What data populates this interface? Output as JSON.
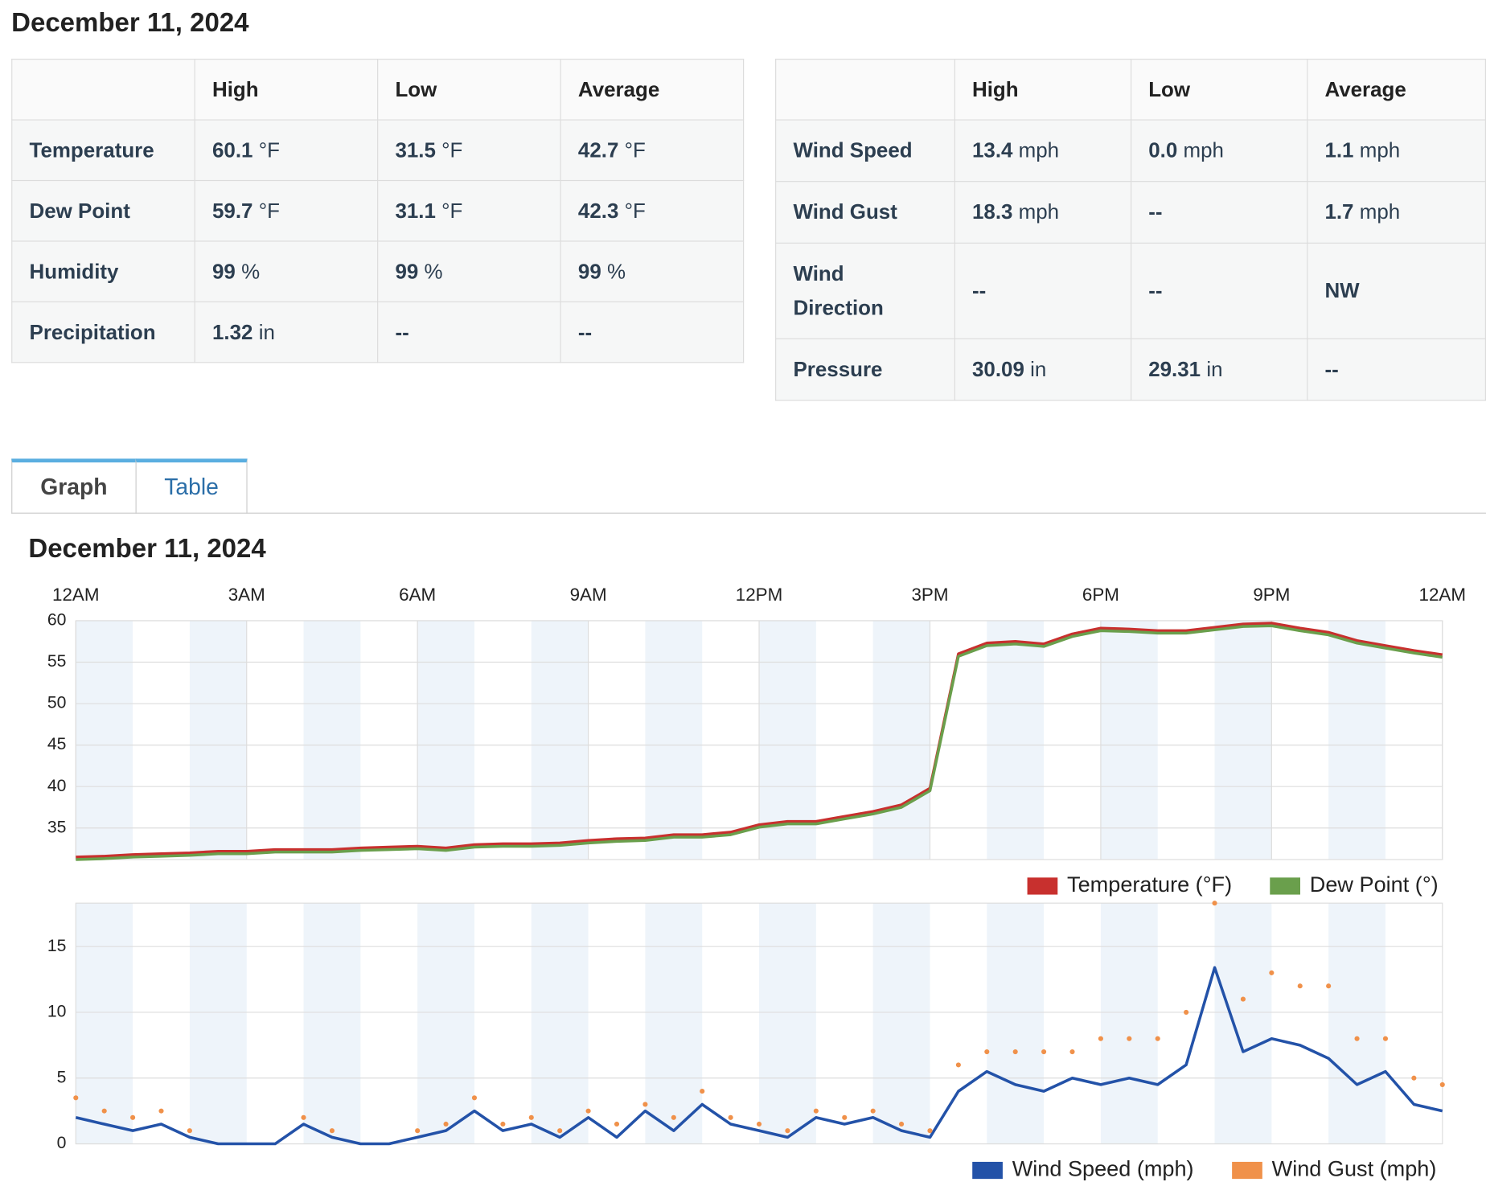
{
  "title": "December 11, 2024",
  "tables": [
    {
      "header": [
        "",
        "High",
        "Low",
        "Average"
      ],
      "rows": [
        {
          "label": "Temperature",
          "cells": [
            {
              "value": "60.1",
              "unit": "°F"
            },
            {
              "value": "31.5",
              "unit": "°F"
            },
            {
              "value": "42.7",
              "unit": "°F"
            }
          ]
        },
        {
          "label": "Dew Point",
          "cells": [
            {
              "value": "59.7",
              "unit": "°F"
            },
            {
              "value": "31.1",
              "unit": "°F"
            },
            {
              "value": "42.3",
              "unit": "°F"
            }
          ]
        },
        {
          "label": "Humidity",
          "cells": [
            {
              "value": "99",
              "unit": "%"
            },
            {
              "value": "99",
              "unit": "%"
            },
            {
              "value": "99",
              "unit": "%"
            }
          ]
        },
        {
          "label": "Precipitation",
          "cells": [
            {
              "value": "1.32",
              "unit": "in"
            },
            {
              "value": "--"
            },
            {
              "value": "--"
            }
          ]
        }
      ]
    },
    {
      "header": [
        "",
        "High",
        "Low",
        "Average"
      ],
      "rows": [
        {
          "label": "Wind Speed",
          "cells": [
            {
              "value": "13.4",
              "unit": "mph"
            },
            {
              "value": "0.0",
              "unit": "mph"
            },
            {
              "value": "1.1",
              "unit": "mph"
            }
          ]
        },
        {
          "label": "Wind Gust",
          "cells": [
            {
              "value": "18.3",
              "unit": "mph"
            },
            {
              "value": "--"
            },
            {
              "value": "1.7",
              "unit": "mph"
            }
          ]
        },
        {
          "label": "Wind Direction",
          "cells": [
            {
              "value": "--"
            },
            {
              "value": "--"
            },
            {
              "value": "NW"
            }
          ]
        },
        {
          "label": "Pressure",
          "cells": [
            {
              "value": "30.09",
              "unit": "in"
            },
            {
              "value": "29.31",
              "unit": "in"
            },
            {
              "value": "--"
            }
          ]
        }
      ]
    }
  ],
  "tabs": [
    "Graph",
    "Table"
  ],
  "chart_data": [
    {
      "type": "line",
      "title": "December 11, 2024",
      "x": [
        0,
        0.5,
        1,
        1.5,
        2,
        2.5,
        3,
        3.5,
        4,
        4.5,
        5,
        5.5,
        6,
        6.5,
        7,
        7.5,
        8,
        8.5,
        9,
        9.5,
        10,
        10.5,
        11,
        11.5,
        12,
        12.5,
        13,
        13.5,
        14,
        14.5,
        15,
        15.5,
        16,
        16.5,
        17,
        17.5,
        18,
        18.5,
        19,
        19.5,
        20,
        20.5,
        21,
        21.5,
        22,
        22.5,
        23,
        23.5,
        24
      ],
      "xlim": [
        0,
        24
      ],
      "xticks": [
        {
          "value": 0,
          "label": "12AM"
        },
        {
          "value": 3,
          "label": "3AM"
        },
        {
          "value": 6,
          "label": "6AM"
        },
        {
          "value": 9,
          "label": "9AM"
        },
        {
          "value": 12,
          "label": "12PM"
        },
        {
          "value": 15,
          "label": "3PM"
        },
        {
          "value": 18,
          "label": "6PM"
        },
        {
          "value": 21,
          "label": "9PM"
        },
        {
          "value": 24,
          "label": "12AM"
        }
      ],
      "ylim": [
        31.2,
        60
      ],
      "yticks": [
        35,
        40,
        45,
        50,
        55,
        60
      ],
      "grid": true,
      "series": [
        {
          "name": "Temperature (°F)",
          "color": "#c8302e",
          "values": [
            31.5,
            31.6,
            31.8,
            31.9,
            32.0,
            32.2,
            32.2,
            32.4,
            32.4,
            32.4,
            32.6,
            32.7,
            32.8,
            32.6,
            33.0,
            33.1,
            33.1,
            33.2,
            33.5,
            33.7,
            33.8,
            34.2,
            34.2,
            34.5,
            35.4,
            35.8,
            35.8,
            36.4,
            37.0,
            37.8,
            39.8,
            56.0,
            57.3,
            57.5,
            57.2,
            58.4,
            59.1,
            59.0,
            58.8,
            58.8,
            59.2,
            59.6,
            59.7,
            59.1,
            58.6,
            57.6,
            57.0,
            56.4,
            55.9
          ]
        },
        {
          "name": "Dew Point (°)",
          "color": "#6a9f4c",
          "values": [
            31.2,
            31.3,
            31.5,
            31.6,
            31.7,
            31.9,
            31.9,
            32.1,
            32.1,
            32.1,
            32.3,
            32.4,
            32.5,
            32.3,
            32.7,
            32.8,
            32.8,
            32.9,
            33.2,
            33.4,
            33.5,
            33.9,
            33.9,
            34.2,
            35.1,
            35.5,
            35.5,
            36.1,
            36.7,
            37.5,
            39.5,
            55.7,
            57.0,
            57.2,
            56.9,
            58.1,
            58.8,
            58.7,
            58.5,
            58.5,
            58.9,
            59.3,
            59.4,
            58.8,
            58.3,
            57.3,
            56.7,
            56.1,
            55.6
          ]
        }
      ]
    },
    {
      "type": "line",
      "x": [
        0,
        0.5,
        1,
        1.5,
        2,
        2.5,
        3,
        3.5,
        4,
        4.5,
        5,
        5.5,
        6,
        6.5,
        7,
        7.5,
        8,
        8.5,
        9,
        9.5,
        10,
        10.5,
        11,
        11.5,
        12,
        12.5,
        13,
        13.5,
        14,
        14.5,
        15,
        15.5,
        16,
        16.5,
        17,
        17.5,
        18,
        18.5,
        19,
        19.5,
        20,
        20.5,
        21,
        21.5,
        22,
        22.5,
        23,
        23.5,
        24
      ],
      "xlim": [
        0,
        24
      ],
      "ylim": [
        0,
        18.3
      ],
      "yticks": [
        0,
        5,
        10,
        15
      ],
      "grid": true,
      "series": [
        {
          "name": "Wind Speed (mph)",
          "color": "#2352a8",
          "values": [
            2.0,
            1.5,
            1.0,
            1.5,
            0.5,
            0,
            0,
            0,
            1.5,
            0.5,
            0,
            0,
            0.5,
            1.0,
            2.5,
            1.0,
            1.5,
            0.5,
            2.0,
            0.5,
            2.5,
            1.0,
            3.0,
            1.5,
            1.0,
            0.5,
            2.0,
            1.5,
            2.0,
            1.0,
            0.5,
            4.0,
            5.5,
            4.5,
            4.0,
            5.0,
            4.5,
            5.0,
            4.5,
            6.0,
            13.4,
            7.0,
            8.0,
            7.5,
            6.5,
            4.5,
            5.5,
            3.0,
            2.5
          ]
        },
        {
          "name": "Wind Gust (mph)",
          "color": "#f0914a",
          "type": "scatter",
          "values": [
            3.5,
            2.5,
            2.0,
            2.5,
            1.0,
            null,
            null,
            null,
            2.0,
            1.0,
            null,
            null,
            1.0,
            1.5,
            3.5,
            1.5,
            2.0,
            1.0,
            2.5,
            1.5,
            3.0,
            2.0,
            4.0,
            2.0,
            1.5,
            1.0,
            2.5,
            2.0,
            2.5,
            1.5,
            1.0,
            6.0,
            7.0,
            7.0,
            7.0,
            7.0,
            8.0,
            8.0,
            8.0,
            10.0,
            18.3,
            11.0,
            13.0,
            12.0,
            12.0,
            8.0,
            8.0,
            5.0,
            4.5
          ]
        }
      ]
    }
  ]
}
